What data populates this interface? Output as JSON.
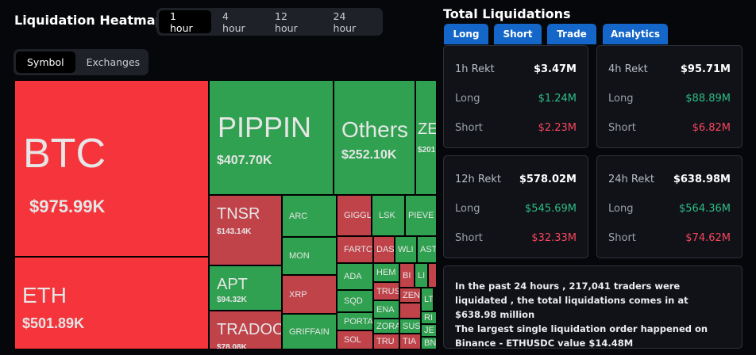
{
  "heatmap": {
    "title": "Liquidation Heatmap",
    "timeframes": [
      {
        "label": "1 hour",
        "active": true
      },
      {
        "label": "4 hour"
      },
      {
        "label": "12 hour"
      },
      {
        "label": "24 hour"
      }
    ],
    "views": [
      {
        "label": "Symbol",
        "active": true
      },
      {
        "label": "Exchanges"
      }
    ],
    "colors": {
      "bright_red": "#f5353b",
      "red": "#c0434a",
      "green": "#30a150"
    },
    "tiles": [
      {
        "symbol": "BTC",
        "value": "$975.99K",
        "color": "bright_red"
      },
      {
        "symbol": "ETH",
        "value": "$501.89K",
        "color": "bright_red"
      },
      {
        "symbol": "PIPPIN",
        "value": "$407.70K",
        "color": "green"
      },
      {
        "symbol": "Others",
        "value": "$252.10K",
        "color": "green"
      },
      {
        "symbol": "ZE",
        "value": "$201",
        "color": "green"
      },
      {
        "symbol": "TNSR",
        "value": "$143.14K",
        "color": "red"
      },
      {
        "symbol": "APT",
        "value": "$94.32K",
        "color": "green"
      },
      {
        "symbol": "TRADOOR",
        "value": "$78.08K",
        "color": "red"
      },
      {
        "symbol": "ARC",
        "color": "green"
      },
      {
        "symbol": "MON",
        "color": "green"
      },
      {
        "symbol": "XRP",
        "color": "red"
      },
      {
        "symbol": "GRIFFAIN",
        "color": "green"
      },
      {
        "symbol": "GIGGLE",
        "color": "red"
      },
      {
        "symbol": "LSK",
        "color": "green"
      },
      {
        "symbol": "PIEVE",
        "color": "green"
      },
      {
        "symbol": "FARTCO",
        "color": "red"
      },
      {
        "symbol": "DAS",
        "color": "red"
      },
      {
        "symbol": "WLI",
        "color": "green"
      },
      {
        "symbol": "AST",
        "color": "green"
      },
      {
        "symbol": "ADA",
        "color": "green"
      },
      {
        "symbol": "SQD",
        "color": "green"
      },
      {
        "symbol": "PORTAL",
        "color": "green"
      },
      {
        "symbol": "SOL",
        "color": "red"
      },
      {
        "symbol": "HEM",
        "color": "green"
      },
      {
        "symbol": "TRUS",
        "color": "red"
      },
      {
        "symbol": "ENA",
        "color": "green"
      },
      {
        "symbol": "ZORA",
        "color": "green"
      },
      {
        "symbol": "TRU",
        "color": "red"
      },
      {
        "symbol": "BI",
        "color": "red"
      },
      {
        "symbol": "LI",
        "color": "green"
      },
      {
        "symbol": "",
        "color": "red"
      },
      {
        "symbol": "ZEN",
        "color": "red"
      },
      {
        "symbol": "LT",
        "color": "green"
      },
      {
        "symbol": "",
        "color": "red"
      },
      {
        "symbol": "SUS",
        "color": "green"
      },
      {
        "symbol": "TIA",
        "color": "red"
      },
      {
        "symbol": "RI",
        "color": "green"
      },
      {
        "symbol": "JE",
        "color": "green"
      },
      {
        "symbol": "BN",
        "color": "green"
      }
    ]
  },
  "totals": {
    "title": "Total Liquidations",
    "tabs": [
      "Long",
      "Short",
      "Trade",
      "Analytics"
    ],
    "cards": [
      {
        "label": "1h Rekt",
        "total": "$3.47M",
        "long": "$1.24M",
        "short": "$2.23M"
      },
      {
        "label": "4h Rekt",
        "total": "$95.71M",
        "long": "$88.89M",
        "short": "$6.82M"
      },
      {
        "label": "12h Rekt",
        "total": "$578.02M",
        "long": "$545.69M",
        "short": "$32.33M"
      },
      {
        "label": "24h Rekt",
        "total": "$638.98M",
        "long": "$564.36M",
        "short": "$74.62M"
      }
    ],
    "long_label": "Long",
    "short_label": "Short",
    "colors": {
      "long": "#2ebd85",
      "short": "#f6465d",
      "tab": "#1466c8"
    },
    "summary": [
      "In the past 24 hours , 217,041 traders were liquidated , the total liquidations comes in at $638.98 million",
      "The largest single liquidation order happened on Binance - ETHUSDC value $14.48M"
    ]
  }
}
